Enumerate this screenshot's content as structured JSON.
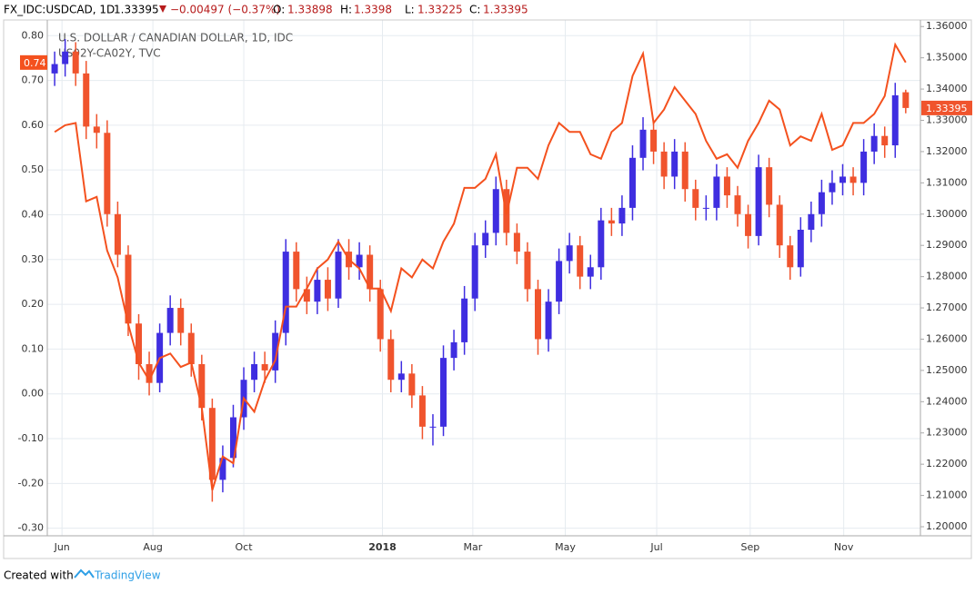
{
  "header": {
    "symbol": "FX_IDC:USDCAD, 1D",
    "change": "−0.00497 (−0.37%)",
    "o_label": "O:",
    "h_label": "H:",
    "l_label": "L:",
    "c_label": "C:"
  },
  "footer": {
    "created": "Created with",
    "brand": "TradingView"
  },
  "chart_data": {
    "type": "candlestick",
    "categories": [
      null,
      null,
      null,
      null,
      null,
      null,
      null,
      null,
      null,
      null,
      null,
      null,
      null,
      null,
      null,
      null,
      null,
      null,
      null,
      null,
      null,
      null,
      null,
      null,
      null,
      null,
      null,
      null,
      null,
      null,
      null,
      null,
      null,
      null,
      null,
      null,
      null,
      null,
      null,
      null,
      null,
      null,
      null,
      null,
      null,
      null,
      null,
      null,
      null,
      null,
      null,
      null,
      null,
      null,
      null,
      null,
      null,
      null,
      null,
      null,
      null,
      null,
      null,
      null,
      null,
      null,
      null,
      null,
      null,
      null,
      null,
      null,
      null,
      null,
      null,
      null,
      null,
      null,
      null,
      null,
      null,
      null
    ],
    "xlim": [
      -0.7,
      82.4
    ],
    "xticks": [
      {
        "value": 0.7,
        "label": "Jun"
      },
      {
        "value": 9.35,
        "label": "Aug"
      },
      {
        "value": 18.0,
        "label": "Oct"
      },
      {
        "value": 31.2,
        "label": "2018"
      },
      {
        "value": 39.8,
        "label": "Mar"
      },
      {
        "value": 48.6,
        "label": "May"
      },
      {
        "value": 57.3,
        "label": "Jul"
      },
      {
        "value": 66.2,
        "label": "Sep"
      },
      {
        "value": 75.1,
        "label": "Nov"
      }
    ],
    "ylim": [
      -0.317,
      0.835
    ],
    "yticks": [
      {
        "value": 0.8,
        "label": "0.80"
      },
      {
        "value": 0.7,
        "label": "0.70"
      },
      {
        "value": 0.6,
        "label": "0.60"
      },
      {
        "value": 0.5,
        "label": "0.50"
      },
      {
        "value": 0.4,
        "label": "0.40"
      },
      {
        "value": 0.3,
        "label": "0.30"
      },
      {
        "value": 0.2,
        "label": "0.20"
      },
      {
        "value": 0.1,
        "label": "0.10"
      },
      {
        "value": 0,
        "label": "0.00"
      },
      {
        "value": -0.1,
        "label": "-0.10"
      },
      {
        "value": -0.2,
        "label": "-0.20"
      },
      {
        "value": -0.3,
        "label": "-0.30"
      }
    ],
    "y2lim": [
      1.1971,
      1.3621
    ],
    "y2ticks": [
      {
        "value": 1.36,
        "label": "1.36000"
      },
      {
        "value": 1.35,
        "label": "1.35000"
      },
      {
        "value": 1.34,
        "label": "1.34000"
      },
      {
        "value": 1.33,
        "label": "1.33000"
      },
      {
        "value": 1.32,
        "label": "1.32000"
      },
      {
        "value": 1.31,
        "label": "1.31000"
      },
      {
        "value": 1.3,
        "label": "1.30000"
      },
      {
        "value": 1.29,
        "label": "1.29000"
      },
      {
        "value": 1.28,
        "label": "1.28000"
      },
      {
        "value": 1.27,
        "label": "1.27000"
      },
      {
        "value": 1.26,
        "label": "1.26000"
      },
      {
        "value": 1.25,
        "label": "1.25000"
      },
      {
        "value": 1.24,
        "label": "1.24000"
      },
      {
        "value": 1.23,
        "label": "1.23000"
      },
      {
        "value": 1.22,
        "label": "1.22000"
      },
      {
        "value": 1.21,
        "label": "1.21000"
      },
      {
        "value": 1.2,
        "label": "1.20000"
      }
    ],
    "grid": true,
    "series": [
      {
        "name": "U.S. DOLLAR / CANADIAN DOLLAR, 1D, IDC",
        "type": "candlestick",
        "axis": "y2",
        "up_color": "#3f2ee0",
        "down_color": "#f0542d",
        "open": [
          1.345,
          1.348,
          1.352,
          1.345,
          1.328,
          1.326,
          1.3,
          1.287,
          1.265,
          1.252,
          1.246,
          1.262,
          1.27,
          1.262,
          1.252,
          1.238,
          1.215,
          1.222,
          1.235,
          1.247,
          1.252,
          1.25,
          1.262,
          1.288,
          1.276,
          1.272,
          1.279,
          1.273,
          1.288,
          1.283,
          1.287,
          1.276,
          1.26,
          1.247,
          1.249,
          1.242,
          1.232,
          1.232,
          1.254,
          1.259,
          1.273,
          1.29,
          1.294,
          1.308,
          1.294,
          1.288,
          1.276,
          1.26,
          1.272,
          1.285,
          1.29,
          1.28,
          1.283,
          1.298,
          1.297,
          1.302,
          1.318,
          1.327,
          1.32,
          1.312,
          1.32,
          1.308,
          1.302,
          1.302,
          1.312,
          1.306,
          1.3,
          1.293,
          1.315,
          1.303,
          1.29,
          1.283,
          1.295,
          1.3,
          1.307,
          1.31,
          1.312,
          1.31,
          1.32,
          1.325,
          1.322,
          1.33898
        ],
        "high": [
          1.352,
          1.356,
          1.355,
          1.349,
          1.332,
          1.33,
          1.304,
          1.29,
          1.268,
          1.256,
          1.265,
          1.274,
          1.273,
          1.265,
          1.255,
          1.241,
          1.226,
          1.239,
          1.251,
          1.256,
          1.256,
          1.266,
          1.292,
          1.291,
          1.28,
          1.283,
          1.283,
          1.292,
          1.292,
          1.291,
          1.29,
          1.279,
          1.263,
          1.253,
          1.252,
          1.245,
          1.236,
          1.258,
          1.263,
          1.277,
          1.294,
          1.298,
          1.312,
          1.311,
          1.297,
          1.291,
          1.279,
          1.276,
          1.289,
          1.294,
          1.293,
          1.287,
          1.302,
          1.302,
          1.306,
          1.322,
          1.331,
          1.33,
          1.323,
          1.324,
          1.323,
          1.311,
          1.306,
          1.316,
          1.315,
          1.309,
          1.303,
          1.319,
          1.318,
          1.306,
          1.293,
          1.299,
          1.304,
          1.311,
          1.314,
          1.316,
          1.315,
          1.324,
          1.329,
          1.328,
          1.342,
          1.3398
        ],
        "low": [
          1.341,
          1.344,
          1.341,
          1.324,
          1.321,
          1.296,
          1.283,
          1.261,
          1.247,
          1.242,
          1.243,
          1.258,
          1.258,
          1.248,
          1.234,
          1.208,
          1.211,
          1.219,
          1.231,
          1.243,
          1.246,
          1.246,
          1.258,
          1.272,
          1.268,
          1.268,
          1.269,
          1.27,
          1.279,
          1.279,
          1.272,
          1.256,
          1.243,
          1.243,
          1.238,
          1.228,
          1.226,
          1.229,
          1.25,
          1.255,
          1.269,
          1.286,
          1.29,
          1.29,
          1.284,
          1.272,
          1.255,
          1.256,
          1.268,
          1.281,
          1.276,
          1.276,
          1.279,
          1.293,
          1.293,
          1.298,
          1.314,
          1.316,
          1.308,
          1.308,
          1.304,
          1.298,
          1.298,
          1.298,
          1.302,
          1.296,
          1.289,
          1.29,
          1.299,
          1.286,
          1.279,
          1.28,
          1.291,
          1.296,
          1.303,
          1.306,
          1.306,
          1.306,
          1.316,
          1.318,
          1.318,
          1.33225
        ],
        "close": [
          1.348,
          1.352,
          1.345,
          1.328,
          1.326,
          1.3,
          1.287,
          1.265,
          1.252,
          1.246,
          1.262,
          1.27,
          1.262,
          1.252,
          1.238,
          1.215,
          1.222,
          1.235,
          1.247,
          1.252,
          1.25,
          1.262,
          1.288,
          1.276,
          1.272,
          1.279,
          1.273,
          1.288,
          1.283,
          1.287,
          1.276,
          1.26,
          1.247,
          1.249,
          1.242,
          1.232,
          1.232,
          1.254,
          1.259,
          1.273,
          1.29,
          1.294,
          1.308,
          1.294,
          1.288,
          1.276,
          1.26,
          1.272,
          1.285,
          1.29,
          1.28,
          1.283,
          1.298,
          1.297,
          1.302,
          1.318,
          1.327,
          1.32,
          1.312,
          1.32,
          1.308,
          1.302,
          1.302,
          1.312,
          1.306,
          1.3,
          1.293,
          1.315,
          1.303,
          1.29,
          1.283,
          1.295,
          1.3,
          1.307,
          1.31,
          1.312,
          1.31,
          1.32,
          1.325,
          1.322,
          1.338,
          1.33395
        ]
      },
      {
        "name": "US02Y-CA02Y, TVC",
        "type": "line",
        "axis": "y",
        "color": "#f4511e",
        "values": [
          0.585,
          0.6,
          0.605,
          0.43,
          0.44,
          0.32,
          0.26,
          0.155,
          0.07,
          0.03,
          0.08,
          0.09,
          0.06,
          0.07,
          -0.03,
          -0.215,
          -0.14,
          -0.155,
          -0.01,
          -0.04,
          0.03,
          0.075,
          0.195,
          0.195,
          0.235,
          0.28,
          0.3,
          0.34,
          0.3,
          0.28,
          0.235,
          0.235,
          0.185,
          0.28,
          0.26,
          0.3,
          0.28,
          0.34,
          0.38,
          0.46,
          0.46,
          0.48,
          0.535,
          0.4,
          0.505,
          0.505,
          0.48,
          0.555,
          0.605,
          0.585,
          0.585,
          0.535,
          0.525,
          0.585,
          0.605,
          0.71,
          0.76,
          0.605,
          0.635,
          0.685,
          0.655,
          0.625,
          0.565,
          0.525,
          0.535,
          0.505,
          0.565,
          0.605,
          0.655,
          0.635,
          0.555,
          0.575,
          0.565,
          0.625,
          0.545,
          0.555,
          0.605,
          0.605,
          0.625,
          0.665,
          0.78,
          0.74
        ]
      }
    ]
  }
}
